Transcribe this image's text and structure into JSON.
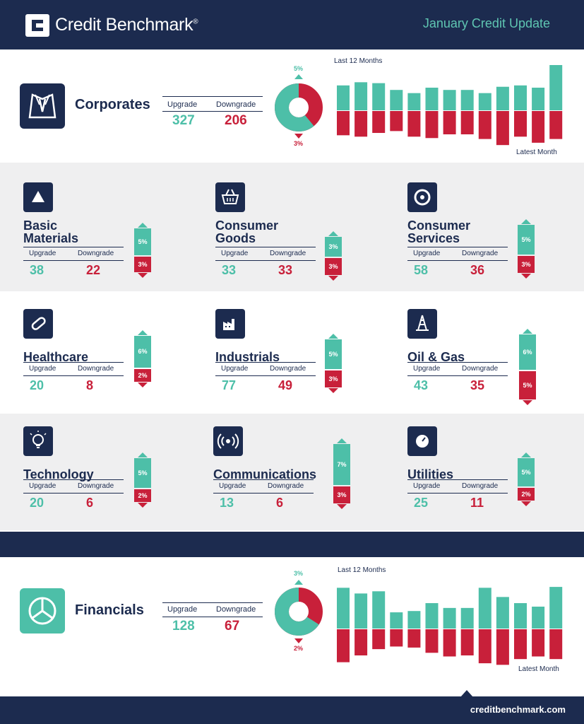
{
  "header": {
    "brand": "Credit Benchmark",
    "brand_mark": "®",
    "update_title": "January Credit Update"
  },
  "colors": {
    "navy": "#1c2b4f",
    "teal": "#4dbfa8",
    "red": "#c8203a",
    "grey": "#efeff0"
  },
  "corporates": {
    "title": "Corporates",
    "upgrade_label": "Upgrade",
    "downgrade_label": "Downgrade",
    "upgrade": "327",
    "downgrade": "206",
    "upgrade_pct": "5%",
    "downgrade_pct": "3%",
    "donut_upgrade_share": 0.61,
    "chart_caption_top": "Last 12 Months",
    "chart_caption_bottom": "Latest Month",
    "icon": "shirt-tie-icon"
  },
  "sectors": [
    {
      "name_line1": "Basic",
      "name_line2": "Materials",
      "upgrade": "38",
      "downgrade": "22",
      "upgrade_pct": "5%",
      "downgrade_pct": "3%",
      "icon": "triangle-icon"
    },
    {
      "name_line1": "Consumer",
      "name_line2": "Goods",
      "upgrade": "33",
      "downgrade": "33",
      "upgrade_pct": "3%",
      "downgrade_pct": "3%",
      "icon": "basket-icon"
    },
    {
      "name_line1": "Consumer",
      "name_line2": "Services",
      "upgrade": "58",
      "downgrade": "36",
      "upgrade_pct": "5%",
      "downgrade_pct": "3%",
      "icon": "service-wheel-icon"
    },
    {
      "name_line1": "Healthcare",
      "name_line2": "",
      "upgrade": "20",
      "downgrade": "8",
      "upgrade_pct": "6%",
      "downgrade_pct": "2%",
      "icon": "pill-icon"
    },
    {
      "name_line1": "Industrials",
      "name_line2": "",
      "upgrade": "77",
      "downgrade": "49",
      "upgrade_pct": "5%",
      "downgrade_pct": "3%",
      "icon": "factory-icon"
    },
    {
      "name_line1": "Oil & Gas",
      "name_line2": "",
      "upgrade": "43",
      "downgrade": "35",
      "upgrade_pct": "6%",
      "downgrade_pct": "5%",
      "icon": "oil-rig-icon"
    },
    {
      "name_line1": "Technology",
      "name_line2": "",
      "upgrade": "20",
      "downgrade": "6",
      "upgrade_pct": "5%",
      "downgrade_pct": "2%",
      "icon": "lightbulb-icon"
    },
    {
      "name_line1": "Communications",
      "name_line2": "",
      "upgrade": "13",
      "downgrade": "6",
      "upgrade_pct": "7%",
      "downgrade_pct": "3%",
      "icon": "broadcast-icon"
    },
    {
      "name_line1": "Utilities",
      "name_line2": "",
      "upgrade": "25",
      "downgrade": "11",
      "upgrade_pct": "5%",
      "downgrade_pct": "2%",
      "icon": "gauge-icon"
    }
  ],
  "sector_labels": {
    "upgrade": "Upgrade",
    "downgrade": "Downgrade"
  },
  "financials": {
    "title": "Financials",
    "upgrade_label": "Upgrade",
    "downgrade_label": "Downgrade",
    "upgrade": "128",
    "downgrade": "67",
    "upgrade_pct": "3%",
    "downgrade_pct": "2%",
    "donut_upgrade_share": 0.66,
    "chart_caption_top": "Last 12 Months",
    "chart_caption_bottom": "Latest Month",
    "icon": "pie-chart-icon"
  },
  "chart_data": [
    {
      "type": "bar",
      "title": "",
      "series": [
        {
          "values": [
            0.55,
            0.62,
            0.6,
            0.45,
            0.38,
            0.5,
            0.45,
            0.45,
            0.38,
            0.52,
            0.55,
            0.5,
            1.0
          ]
        },
        {
          "values": [
            -0.52,
            -0.55,
            -0.47,
            -0.43,
            -0.55,
            -0.58,
            -0.5,
            -0.5,
            -0.6,
            -0.73,
            -0.55,
            -0.68,
            -0.6
          ]
        }
      ],
      "xlabel": "",
      "ylabel": ""
    },
    {
      "type": "bar",
      "title": "",
      "series": [
        {
          "values": [
            0.93,
            0.8,
            0.85,
            0.37,
            0.4,
            0.58,
            0.47,
            0.47,
            0.93,
            0.72,
            0.58,
            0.5,
            0.95
          ]
        },
        {
          "values": [
            -0.63,
            -0.5,
            -0.38,
            -0.33,
            -0.35,
            -0.45,
            -0.52,
            -0.5,
            -0.65,
            -0.68,
            -0.57,
            -0.52,
            -0.57
          ]
        }
      ],
      "xlabel": "",
      "ylabel": ""
    }
  ],
  "footer": {
    "site": "creditbenchmark.com"
  }
}
